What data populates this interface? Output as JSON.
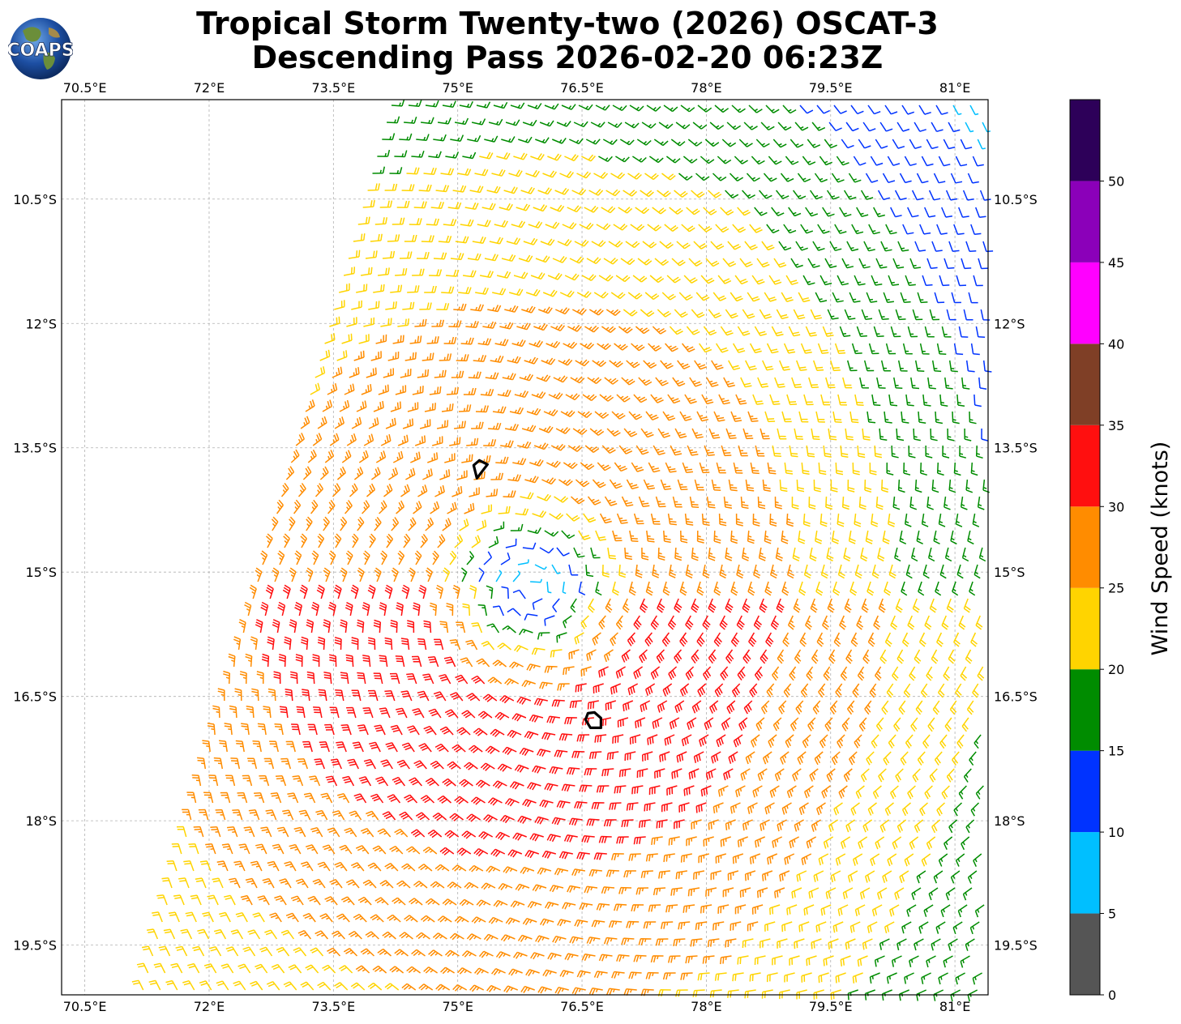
{
  "header": {
    "title_line1": "Tropical Storm Twenty-two (2026) OSCAT-3",
    "title_line2": "Descending Pass 2026-02-20 06:23Z",
    "logo_text": "COAPS"
  },
  "map": {
    "lon_range": [
      70.22,
      81.4
    ],
    "lat_range": [
      -9.3,
      -20.1
    ],
    "lon_ticks": [
      70.5,
      72,
      73.5,
      75,
      76.5,
      78,
      79.5,
      81
    ],
    "lon_tick_labels": [
      "70.5°E",
      "72°E",
      "73.5°E",
      "75°E",
      "76.5°E",
      "78°E",
      "79.5°E",
      "81°E"
    ],
    "lat_ticks": [
      -10.5,
      -12,
      -13.5,
      -15,
      -16.5,
      -18,
      -19.5
    ],
    "lat_tick_labels": [
      "10.5°S",
      "12°S",
      "13.5°S",
      "15°S",
      "16.5°S",
      "18°S",
      "19.5°S"
    ],
    "gridlines": true,
    "storm_center": {
      "lon": 75.9,
      "lat": -15.2
    },
    "rain_flag_contours": [
      {
        "lon": 75.3,
        "lat": -13.75
      },
      {
        "lon": 76.65,
        "lat": -16.8
      }
    ]
  },
  "colorbar": {
    "label": "Wind Speed (knots)",
    "tick_labels": [
      "0",
      "5",
      "10",
      "15",
      "20",
      "25",
      "30",
      "35",
      "40",
      "45",
      "50"
    ],
    "bins": [
      {
        "min": 0,
        "max": 5,
        "color": "#555555"
      },
      {
        "min": 5,
        "max": 10,
        "color": "#00bfff"
      },
      {
        "min": 10,
        "max": 15,
        "color": "#0033ff"
      },
      {
        "min": 15,
        "max": 20,
        "color": "#008c00"
      },
      {
        "min": 20,
        "max": 25,
        "color": "#ffd400"
      },
      {
        "min": 25,
        "max": 30,
        "color": "#ff8c00"
      },
      {
        "min": 30,
        "max": 35,
        "color": "#ff0f0f"
      },
      {
        "min": 35,
        "max": 40,
        "color": "#7f3f26"
      },
      {
        "min": 40,
        "max": 45,
        "color": "#ff00ff"
      },
      {
        "min": 45,
        "max": 50,
        "color": "#8b00b9"
      },
      {
        "min": 50,
        "max": 55,
        "color": "#2d0059"
      }
    ]
  }
}
